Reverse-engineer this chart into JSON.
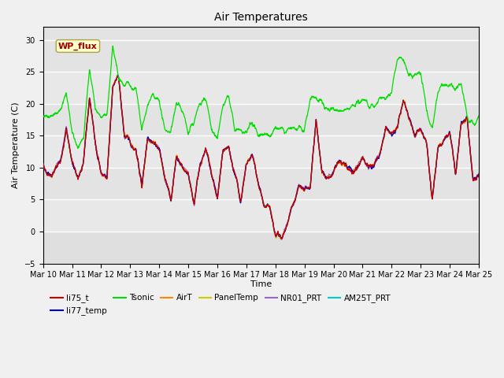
{
  "title": "Air Temperatures",
  "xlabel": "Time",
  "ylabel": "Air Temperature (C)",
  "ylim": [
    -5,
    32
  ],
  "yticks": [
    -5,
    0,
    5,
    10,
    15,
    20,
    25,
    30
  ],
  "xlim": [
    0,
    15
  ],
  "fig_bg": "#f0f0f0",
  "plot_bg": "#e8e8e8",
  "legend_entries": [
    "li75_t",
    "li77_temp",
    "Tsonic",
    "AirT",
    "PanelTemp",
    "NR01_PRT",
    "AM25T_PRT"
  ],
  "legend_colors": [
    "#cc0000",
    "#0000cc",
    "#00dd00",
    "#ff8800",
    "#cccc00",
    "#9966cc",
    "#00cccc"
  ],
  "wp_flux_box_color": "#ffffcc",
  "wp_flux_text_color": "#990000",
  "xtick_labels": [
    "Mar 10",
    "Mar 11",
    "Mar 12",
    "Mar 13",
    "Mar 14",
    "Mar 15",
    "Mar 16",
    "Mar 17",
    "Mar 18",
    "Mar 19",
    "Mar 20",
    "Mar 21",
    "Mar 22",
    "Mar 23",
    "Mar 24",
    "Mar 25"
  ],
  "seed": 42
}
